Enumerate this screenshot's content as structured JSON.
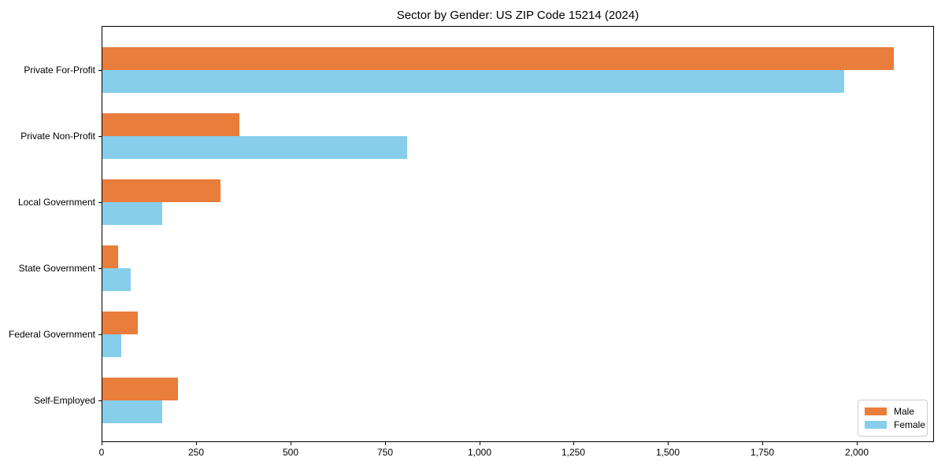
{
  "chart_data": {
    "type": "bar",
    "orientation": "horizontal",
    "title": "Sector by Gender: US ZIP Code 15214 (2024)",
    "categories": [
      "Private For-Profit",
      "Private Non-Profit",
      "Local Government",
      "State Government",
      "Federal Government",
      "Self-Employed"
    ],
    "series": [
      {
        "name": "Male",
        "color": "#E87D3C",
        "values": [
          2095,
          362,
          312,
          42,
          94,
          200
        ]
      },
      {
        "name": "Female",
        "color": "#87CEEB",
        "values": [
          1965,
          806,
          158,
          75,
          50,
          158
        ]
      }
    ],
    "xlabel": "",
    "ylabel": "",
    "xlim": [
      0,
      2200
    ],
    "xticks": [
      0,
      250,
      500,
      750,
      1000,
      1250,
      1500,
      1750,
      2000
    ],
    "xtick_labels": [
      "0",
      "250",
      "500",
      "750",
      "1,000",
      "1,250",
      "1,500",
      "1,750",
      "2,000"
    ],
    "grid": false,
    "legend": {
      "position": "lower right"
    },
    "colors": {
      "plot_border": "#000000",
      "legend_border": "#cccccc",
      "background": "#ffffff",
      "text": "#000000"
    }
  }
}
